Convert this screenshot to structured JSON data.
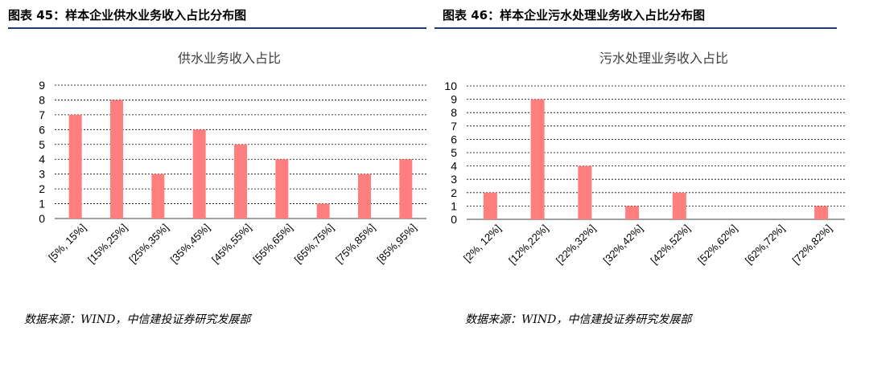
{
  "figures": [
    {
      "figure_label": "图表 45：样本企业供水业务收入占比分布图",
      "source": "数据来源：WIND，中信建投证券研究发展部"
    },
    {
      "figure_label": "图表 46：样本企业污水处理业务收入占比分布图",
      "source": "数据来源：WIND，中信建投证券研究发展部"
    }
  ],
  "colors": {
    "bar": "#ff7f7f",
    "grid": "#000000",
    "rule": "#1f3b6b"
  },
  "chart_data": [
    {
      "type": "bar",
      "title": "供水业务收入占比",
      "xlabel": "",
      "ylabel": "",
      "categories": [
        "[5%, 15%]",
        "[15%,25%]",
        "[25%,35%]",
        "[35%,45%]",
        "[45%,55%]",
        "[55%,65%]",
        "[65%,75%]",
        "[75%,85%]",
        "[85%,95%]"
      ],
      "values": [
        7,
        8,
        3,
        6,
        5,
        4,
        1,
        3,
        4
      ],
      "ylim": [
        0,
        9
      ],
      "yticks": [
        0,
        1,
        2,
        3,
        4,
        5,
        6,
        7,
        8,
        9
      ],
      "grid": "horizontal-dashed",
      "legend": "none"
    },
    {
      "type": "bar",
      "title": "污水处理业务收入占比",
      "xlabel": "",
      "ylabel": "",
      "categories": [
        "[2%, 12%]",
        "[12%,22%]",
        "[22%,32%]",
        "[32%,42%]",
        "[42%,52%]",
        "[52%,62%]",
        "[62%,72%]",
        "[72%,82%]"
      ],
      "values": [
        2,
        9,
        4,
        1,
        2,
        0,
        0,
        1
      ],
      "ylim": [
        0,
        10
      ],
      "yticks": [
        0,
        1,
        2,
        3,
        4,
        5,
        6,
        7,
        8,
        9,
        10
      ],
      "grid": "horizontal-dashed",
      "legend": "none"
    }
  ]
}
